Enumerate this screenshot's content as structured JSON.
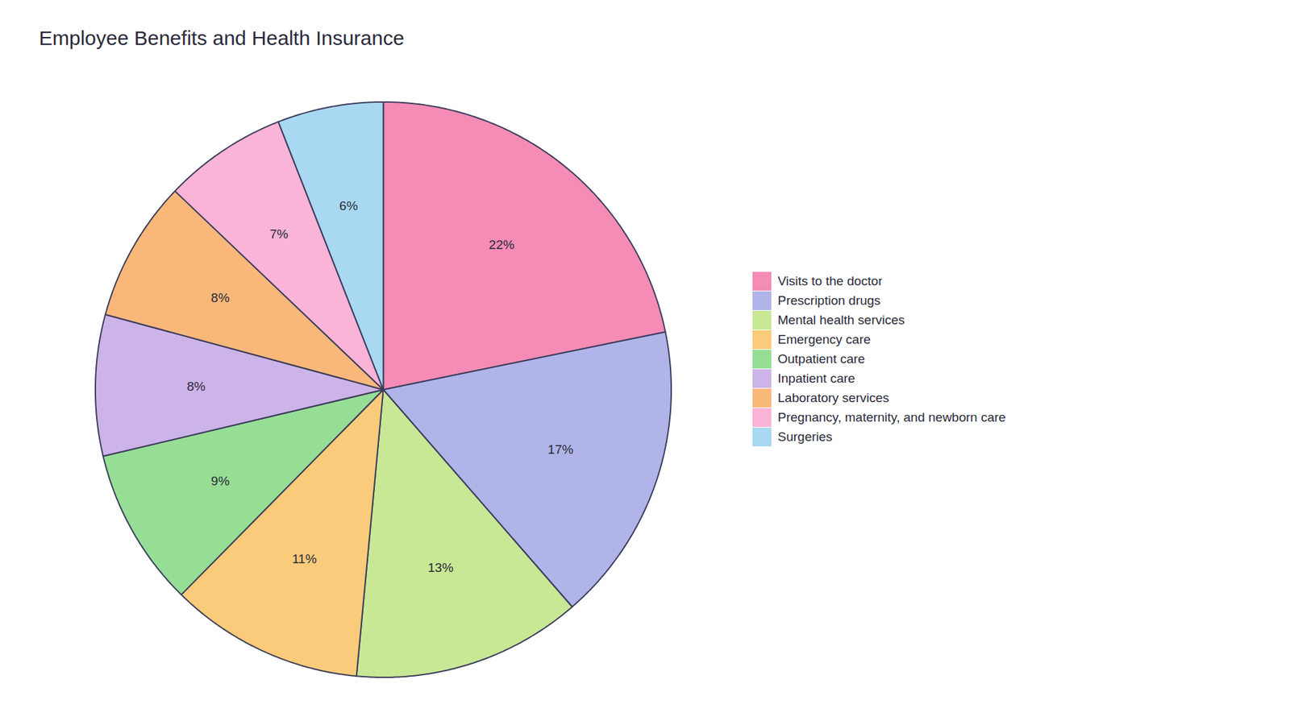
{
  "chart_data": {
    "type": "pie",
    "title": "Employee Benefits and Health Insurance",
    "categories": [
      "Visits to the doctor",
      "Prescription drugs",
      "Mental health services",
      "Emergency care",
      "Outpatient care",
      "Inpatient care",
      "Laboratory services",
      "Pregnancy, maternity, and newborn care",
      "Surgeries"
    ],
    "values": [
      22,
      17,
      13,
      11,
      9,
      8,
      8,
      7,
      6
    ],
    "value_labels": [
      "22%",
      "17%",
      "13%",
      "11%",
      "9%",
      "8%",
      "8%",
      "7%",
      "6%"
    ],
    "colors": [
      "#F48CB6",
      "#B0B4E8",
      "#C8E896",
      "#F9CB7A",
      "#96DE96",
      "#CDB4E8",
      "#F9B87A",
      "#F9B4D8",
      "#A8D8F2"
    ],
    "data_labels": true,
    "legend": "right"
  }
}
